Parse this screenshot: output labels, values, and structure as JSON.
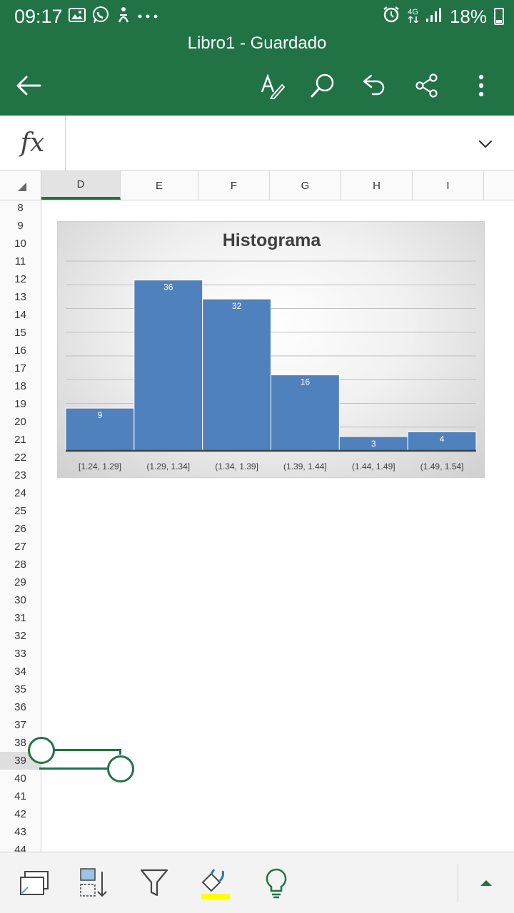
{
  "status_bar": {
    "time": "09:17",
    "left_icons": [
      "image-icon",
      "whatsapp-icon",
      "accessibility-icon",
      "more-notifications-icon"
    ],
    "network_label": "4G",
    "battery_percent": "18%"
  },
  "header": {
    "title": "Libro1 - Guardado",
    "icons": [
      "back-arrow-icon",
      "draw-icon",
      "search-icon",
      "undo-icon",
      "share-icon",
      "more-vert-icon"
    ],
    "accent_color": "#217346"
  },
  "formula_bar": {
    "fx_label": "fx",
    "value": ""
  },
  "columns": [
    "D",
    "E",
    "F",
    "G",
    "H",
    "I"
  ],
  "selected_column": "D",
  "rows": [
    "8",
    "9",
    "10",
    "11",
    "12",
    "13",
    "14",
    "15",
    "16",
    "17",
    "18",
    "19",
    "20",
    "21",
    "22",
    "23",
    "24",
    "25",
    "26",
    "27",
    "28",
    "29",
    "30",
    "31",
    "32",
    "33",
    "34",
    "35",
    "36",
    "37",
    "38",
    "39",
    "40",
    "41",
    "42",
    "43",
    "44"
  ],
  "selected_row": "39",
  "chart_data": {
    "type": "bar",
    "title": "Histograma",
    "categories": [
      "[1.24, 1.29]",
      "(1.29, 1.34]",
      "(1.34, 1.39]",
      "(1.39, 1.44]",
      "(1.44, 1.49]",
      "(1.49, 1.54]"
    ],
    "values": [
      9,
      36,
      32,
      16,
      3,
      4
    ],
    "ylim": [
      0,
      40
    ],
    "grid": true,
    "legend": "none",
    "bar_color": "#4f81bd",
    "data_label_color": "#ffffff"
  },
  "bottom_toolbar": {
    "icons": [
      "select-chart-icon",
      "sort-icon",
      "filter-icon",
      "fill-color-icon",
      "lightbulb-icon",
      "expand-up-icon"
    ],
    "fill_highlight_color": "#ffff00"
  }
}
